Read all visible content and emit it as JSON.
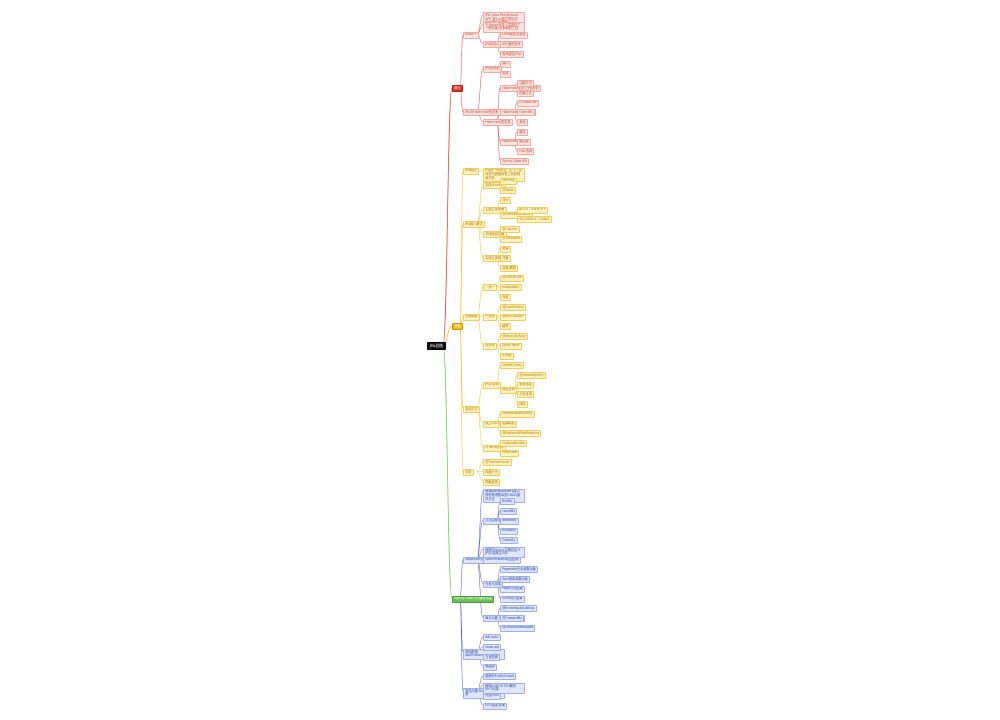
{
  "root": {
    "label": "JPA总结"
  },
  "branches": [
    {
      "label": "简介",
      "color": "red",
      "children": [
        {
          "label": "JPA简介",
          "children": [
            {
              "label": "JPA (Java Persistence API) 是Sun官方提出的Java持久化规范"
            },
            {
              "label": "它为Java开发人员提供了一种对象/关系映射工具"
            },
            {
              "label": "JPA包括以下3方面的技术",
              "children": [
                {
                  "label": "ORM映射元数据"
                },
                {
                  "label": "API"
                },
                {
                  "label": "查询语言JPQL"
                }
              ]
            }
          ]
        },
        {
          "label": "JPA与Hibernate的关系",
          "children": [
            {
              "label": "JPA是规范",
              "children": [
                {
                  "label": "接口"
                },
                {
                  "label": "标准"
                }
              ]
            },
            {
              "label": "Hibernate是实现",
              "children": [
                {
                  "label": "Hibernate实现了JPA规范",
                  "children": [
                    {
                      "label": "注解方式"
                    },
                    {
                      "label": "配置方式"
                    }
                  ]
                },
                {
                  "label": "Hibernate的其他实现",
                  "children": [
                    {
                      "label": "EclipseLink"
                    },
                    {
                      "label": "OpenJPA"
                    },
                    {
                      "label": "其他"
                    }
                  ]
                },
                {
                  "label": "Hibernate特性",
                  "children": [
                    {
                      "label": "缓存"
                    },
                    {
                      "label": "懒加载"
                    },
                    {
                      "label": "HQL查询"
                    }
                  ]
                },
                {
                  "label": "Spring Data JPA"
                }
              ]
            }
          ]
        }
      ]
    },
    {
      "label": "基础",
      "color": "yellow",
      "children": [
        {
          "label": "JPA概述",
          "children": [
            {
              "label": "JPA是一种规范，定义了实体类与数据库表之间的映射关系"
            }
          ]
        },
        {
          "label": "JPA核心概念",
          "children": [
            {
              "label": "实体(Entity)",
              "children": [
                {
                  "label": "@Entity"
                },
                {
                  "label": "@Table"
                }
              ]
            },
            {
              "label": "主键生成策略",
              "children": [
                {
                  "label": "@Id"
                },
                {
                  "label": "@GeneratedValue",
                  "children": [
                    {
                      "label": "AUTO / IDENTITY"
                    },
                    {
                      "label": "SEQUENCE / TABLE"
                    }
                  ]
                }
              ]
            },
            {
              "label": "字段映射注解",
              "children": [
                {
                  "label": "@Column"
                },
                {
                  "label": "@Transient"
                }
              ]
            },
            {
              "label": "实体生命周期",
              "children": [
                {
                  "label": "新建"
                },
                {
                  "label": "托管"
                },
                {
                  "label": "游离/删除"
                }
              ]
            }
          ]
        },
        {
          "label": "关联映射",
          "children": [
            {
              "label": "一对一",
              "children": [
                {
                  "label": "@OneToOne"
                },
                {
                  "label": "mappedBy"
                },
                {
                  "label": "外键"
                }
              ]
            },
            {
              "label": "一对多",
              "children": [
                {
                  "label": "@OneToMany"
                },
                {
                  "label": "@JoinColumn"
                },
                {
                  "label": "级联"
                }
              ]
            },
            {
              "label": "多对多",
              "children": [
                {
                  "label": "@ManyToMany"
                },
                {
                  "label": "@JoinTable"
                },
                {
                  "label": "中间表"
                }
              ]
            }
          ]
        },
        {
          "label": "查询方式",
          "children": [
            {
              "label": "JPQL查询",
              "children": [
                {
                  "label": "createQuery"
                },
                {
                  "label": "命名查询",
                  "children": [
                    {
                      "label": "@NamedQuery"
                    },
                    {
                      "label": "参数绑定"
                    },
                    {
                      "label": "分页查询"
                    },
                    {
                      "label": "排序"
                    }
                  ]
                }
              ]
            },
            {
              "label": "原生SQL查询",
              "children": [
                {
                  "label": "createNativeQuery"
                },
                {
                  "label": "结果映射"
                },
                {
                  "label": "@SqlResultSetMapping"
                }
              ]
            },
            {
              "label": "Criteria查询",
              "children": [
                {
                  "label": "CriteriaBuilder"
                },
                {
                  "label": "Predicate"
                }
              ]
            }
          ]
        },
        {
          "label": "事务",
          "children": [
            {
              "label": "@Transactional"
            },
            {
              "label": "传播行为"
            },
            {
              "label": "隔离级别"
            }
          ]
        }
      ]
    },
    {
      "label": "Spring Data JPA使用总结",
      "color": "blue",
      "l1color": "green",
      "children": [
        {
          "label": "Repository接口",
          "children": [
            {
              "label": "继承JpaRepository接口即可获得基本的CRUD操作方法"
            },
            {
              "label": "方法名称查询",
              "children": [
                {
                  "label": "findBy"
                },
                {
                  "label": "countBy"
                },
                {
                  "label": "deleteBy"
                },
                {
                  "label": "existsBy"
                },
                {
                  "label": "OrderBy"
                }
              ]
            },
            {
              "label": "使用@Query注解自定义JPQL或原生SQL"
            },
            {
              "label": "Specification动态查询"
            },
            {
              "label": "分页与排序",
              "children": [
                {
                  "label": "Pageable分页参数对象"
                },
                {
                  "label": "Sort排序参数对象"
                },
                {
                  "label": "Page分页结果"
                },
                {
                  "label": "Slice切片结果"
                }
              ]
            },
            {
              "label": "审计功能 @CreatedDate",
              "children": [
                {
                  "label": "@EnableJpaAuditing"
                },
                {
                  "label": "@CreatedBy"
                },
                {
                  "label": "@LastModifiedDate"
                }
              ]
            }
          ]
        },
        {
          "label": "常用配置 application.properties",
          "children": [
            {
              "label": "ddl-auto"
            },
            {
              "label": "show-sql"
            },
            {
              "label": "方言配置"
            },
            {
              "label": "数据源"
            }
          ]
        },
        {
          "label": "常见问题 N+1、懒加载异常",
          "children": [
            {
              "label": "使用@EntityGraph"
            },
            {
              "label": "使用JOIN FETCH解决N+1问题"
            },
            {
              "label": "开启OSIV"
            },
            {
              "label": "DTO投影查询"
            }
          ]
        }
      ]
    }
  ],
  "colors": {
    "red_line": "#e8332a",
    "yellow_line": "#f5b800",
    "green_line": "#6cc15a",
    "blue_line": "#3048c8",
    "root_bg": "#111111"
  }
}
